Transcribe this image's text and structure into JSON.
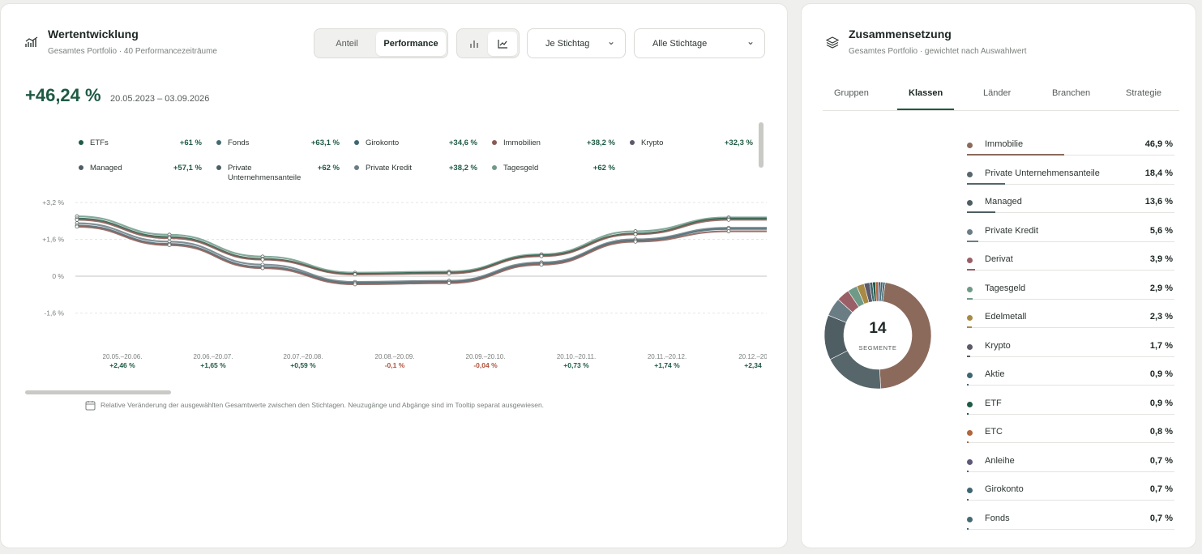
{
  "left": {
    "title": "Wertentwicklung",
    "subtitle": "Gesamtes Portfolio · 40 Performancezeiträume",
    "mode_tabs": [
      "Anteil",
      "Performance"
    ],
    "active_mode": "Performance",
    "view_icons": [
      "bar-chart-icon",
      "line-chart-icon"
    ],
    "dropdown1": "Je Stichtag",
    "dropdown2": "Alle Stichtage",
    "total_change": "+46,24 %",
    "date_range": "20.05.2023 – 03.09.2026",
    "footnote": "Relative Veränderung der ausgewählten Gesamtwerte zwischen den Stichtagen. Neuzugänge und Abgänge sind im Tooltip separat ausgewiesen."
  },
  "legend": [
    {
      "name": "ETFs",
      "value": "+61 %",
      "color": "#1f5a45"
    },
    {
      "name": "Fonds",
      "value": "+63,1 %",
      "color": "#466a72"
    },
    {
      "name": "Girokonto",
      "value": "+34,6 %",
      "color": "#3e6670"
    },
    {
      "name": "Immobilien",
      "value": "+38,2 %",
      "color": "#8a5a55"
    },
    {
      "name": "Krypto",
      "value": "+32,3 %",
      "color": "#5c5a6a"
    },
    {
      "name": "Managed",
      "value": "+57,1 %",
      "color": "#4e5e63"
    },
    {
      "name": "Private Unternehmensanteile",
      "value": "+62 %",
      "color": "#4c5f66"
    },
    {
      "name": "Private Kredit",
      "value": "+38,2 %",
      "color": "#6b7d84"
    },
    {
      "name": "Tagesgeld",
      "value": "+62 %",
      "color": "#6f9a88"
    }
  ],
  "chart_data": {
    "type": "line",
    "y_ticks": [
      "+3,2 %",
      "+1,6 %",
      "0 %",
      "-1,6 %"
    ],
    "ylim": [
      -3.2,
      3.2
    ],
    "periods": [
      "20.05.–20.06.",
      "20.06.–20.07.",
      "20.07.–20.08.",
      "20.08.–20.09.",
      "20.09.–20.10.",
      "20.10.–20.11.",
      "20.11.–20.12.",
      "20.12.–20"
    ],
    "period_changes": [
      "+2,46 %",
      "+1,65 %",
      "+0,59 %",
      "-0,1 %",
      "-0,04 %",
      "+0,73 %",
      "+1,74 %",
      "+2,34"
    ],
    "series": [
      {
        "color": "#6f9a88",
        "values": [
          2.6,
          1.8,
          0.85,
          0.15,
          0.2,
          0.95,
          1.95,
          2.55
        ]
      },
      {
        "color": "#1f5a45",
        "values": [
          2.5,
          1.7,
          0.75,
          0.1,
          0.15,
          0.9,
          1.85,
          2.5
        ]
      },
      {
        "color": "#8a5a55",
        "values": [
          2.45,
          1.65,
          0.72,
          0.08,
          0.12,
          0.87,
          1.82,
          2.45
        ]
      },
      {
        "color": "#6b7d84",
        "values": [
          2.3,
          1.5,
          0.5,
          -0.25,
          -0.2,
          0.6,
          1.6,
          2.1
        ]
      },
      {
        "color": "#466a72",
        "values": [
          2.2,
          1.4,
          0.4,
          -0.3,
          -0.25,
          0.55,
          1.55,
          2.05
        ]
      },
      {
        "color": "#8a5a55",
        "values": [
          2.15,
          1.35,
          0.35,
          -0.35,
          -0.3,
          0.5,
          1.5,
          1.95
        ]
      }
    ]
  },
  "right": {
    "title": "Zusammensetzung",
    "subtitle": "Gesamtes Portfolio · gewichtet nach Auswahlwert",
    "tabs": [
      "Gruppen",
      "Klassen",
      "Länder",
      "Branchen",
      "Strategie"
    ],
    "active_tab": "Klassen",
    "donut_count": "14",
    "donut_label": "SEGMENTE",
    "rows": [
      {
        "name": "Immobilie",
        "value": "46,9 %",
        "pct": 46.9,
        "color": "#8b6a5c"
      },
      {
        "name": "Private Unternehmensanteile",
        "value": "18,4 %",
        "pct": 18.4,
        "color": "#56666b"
      },
      {
        "name": "Managed",
        "value": "13,6 %",
        "pct": 13.6,
        "color": "#4e5e63"
      },
      {
        "name": "Private Kredit",
        "value": "5,6 %",
        "pct": 5.6,
        "color": "#6b7d84"
      },
      {
        "name": "Derivat",
        "value": "3,9 %",
        "pct": 3.9,
        "color": "#9a5f66"
      },
      {
        "name": "Tagesgeld",
        "value": "2,9 %",
        "pct": 2.9,
        "color": "#6f9a88"
      },
      {
        "name": "Edelmetall",
        "value": "2,3 %",
        "pct": 2.3,
        "color": "#a88a45"
      },
      {
        "name": "Krypto",
        "value": "1,7 %",
        "pct": 1.7,
        "color": "#5c5a6a"
      },
      {
        "name": "Aktie",
        "value": "0,9 %",
        "pct": 0.9,
        "color": "#3e6670"
      },
      {
        "name": "ETF",
        "value": "0,9 %",
        "pct": 0.9,
        "color": "#1f5a45"
      },
      {
        "name": "ETC",
        "value": "0,8 %",
        "pct": 0.8,
        "color": "#b0653a"
      },
      {
        "name": "Anleihe",
        "value": "0,7 %",
        "pct": 0.7,
        "color": "#5e5878"
      },
      {
        "name": "Girokonto",
        "value": "0,7 %",
        "pct": 0.7,
        "color": "#3e6670"
      },
      {
        "name": "Fonds",
        "value": "0,7 %",
        "pct": 0.7,
        "color": "#466a72"
      }
    ]
  }
}
